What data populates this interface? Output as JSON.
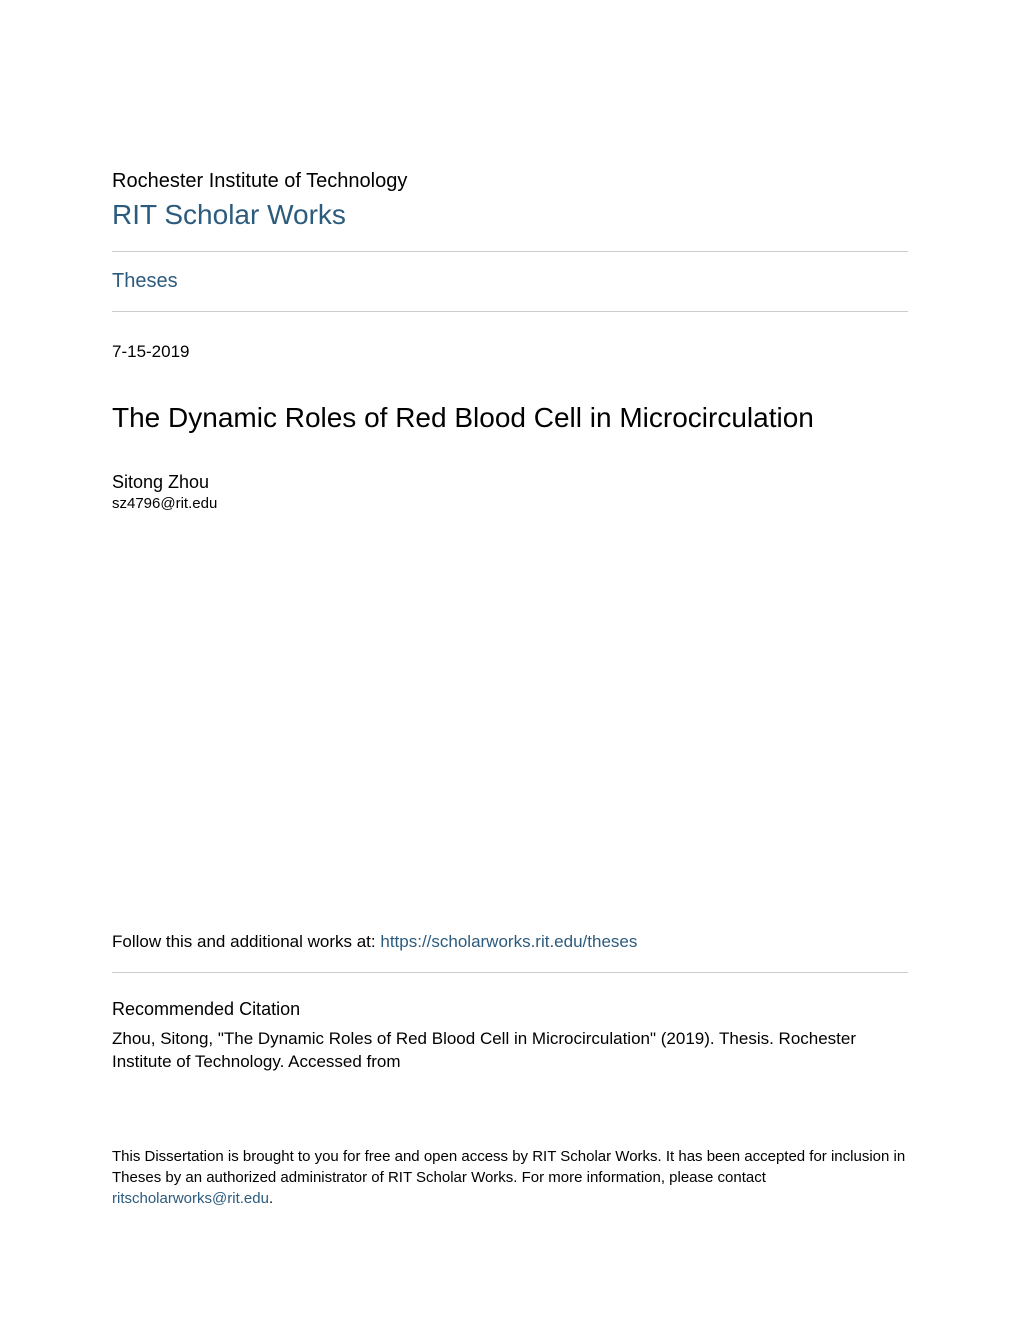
{
  "colors": {
    "background": "#ffffff",
    "text": "#000000",
    "link": "#2c5b7d",
    "divider": "#cccccc"
  },
  "typography": {
    "font_family": "Arial, Helvetica, sans-serif",
    "institution_fontsize": 20,
    "repository_fontsize": 28,
    "section_link_fontsize": 20,
    "date_fontsize": 17,
    "title_fontsize": 28,
    "author_name_fontsize": 18,
    "author_email_fontsize": 15,
    "body_fontsize": 17,
    "citation_heading_fontsize": 18,
    "footer_fontsize": 15
  },
  "header": {
    "institution": "Rochester Institute of Technology",
    "repository": "RIT Scholar Works"
  },
  "section": {
    "label": "Theses"
  },
  "meta": {
    "date": "7-15-2019",
    "title": "The Dynamic Roles of Red Blood Cell in Microcirculation",
    "author_name": "Sitong Zhou",
    "author_email": "sz4796@rit.edu"
  },
  "follow": {
    "prefix": "Follow this and additional works at: ",
    "url_text": "https://scholarworks.rit.edu/theses"
  },
  "citation": {
    "heading": "Recommended Citation",
    "text": "Zhou, Sitong, \"The Dynamic Roles of Red Blood Cell in Microcirculation\" (2019). Thesis. Rochester Institute of Technology. Accessed from"
  },
  "footer": {
    "text_part1": "This Dissertation is brought to you for free and open access by RIT Scholar Works. It has been accepted for inclusion in Theses by an authorized administrator of RIT Scholar Works. For more information, please contact ",
    "email": "ritscholarworks@rit.edu",
    "text_part2": "."
  }
}
